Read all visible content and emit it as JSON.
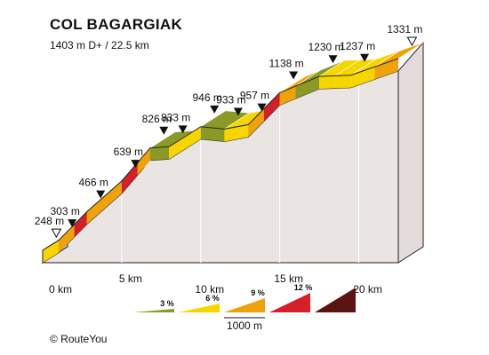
{
  "chart_data": {
    "type": "area",
    "title": "COL BAGARGIAK",
    "subtitle": "1403 m D+ / 22.5 km",
    "credit": "© RouteYou",
    "x_ticks": [
      "0 km",
      "5 km",
      "10 km",
      "15 km",
      "20 km"
    ],
    "points": [
      {
        "km": 0.0,
        "elev": 248,
        "label": "248 m",
        "marker": "start"
      },
      {
        "km": 1.0,
        "elev": 303,
        "label": "303 m",
        "marker": "peak"
      },
      {
        "km": 2.8,
        "elev": 466,
        "label": "466 m",
        "marker": "peak"
      },
      {
        "km": 5.0,
        "elev": 639,
        "label": "639 m",
        "marker": "peak"
      },
      {
        "km": 6.8,
        "elev": 826,
        "label": "826 m",
        "marker": "peak"
      },
      {
        "km": 8.0,
        "elev": 833,
        "label": "833 m",
        "marker": "peak"
      },
      {
        "km": 10.0,
        "elev": 946,
        "label": "946 m",
        "marker": "peak"
      },
      {
        "km": 11.5,
        "elev": 933,
        "label": "933 m",
        "marker": "peak"
      },
      {
        "km": 13.0,
        "elev": 957,
        "label": "957 m",
        "marker": "peak"
      },
      {
        "km": 15.0,
        "elev": 1138,
        "label": "1138 m",
        "marker": "peak"
      },
      {
        "km": 17.5,
        "elev": 1230,
        "label": "1230 m",
        "marker": "peak"
      },
      {
        "km": 19.5,
        "elev": 1237,
        "label": "1237 m",
        "marker": "peak"
      },
      {
        "km": 22.5,
        "elev": 1331,
        "label": "1331 m",
        "marker": "end"
      }
    ],
    "segments": [
      {
        "from": 0.0,
        "to": 1.0,
        "grade": 6
      },
      {
        "from": 1.0,
        "to": 2.0,
        "grade": 9
      },
      {
        "from": 2.0,
        "to": 2.8,
        "grade": 12
      },
      {
        "from": 2.8,
        "to": 4.0,
        "grade": 9
      },
      {
        "from": 4.0,
        "to": 5.0,
        "grade": 9
      },
      {
        "from": 5.0,
        "to": 6.0,
        "grade": 12
      },
      {
        "from": 6.0,
        "to": 6.8,
        "grade": 9
      },
      {
        "from": 6.8,
        "to": 8.0,
        "grade": 3
      },
      {
        "from": 8.0,
        "to": 9.0,
        "grade": 6
      },
      {
        "from": 9.0,
        "to": 10.0,
        "grade": 6
      },
      {
        "from": 10.0,
        "to": 11.5,
        "grade": 3
      },
      {
        "from": 11.5,
        "to": 13.0,
        "grade": 6
      },
      {
        "from": 13.0,
        "to": 14.0,
        "grade": 9
      },
      {
        "from": 14.0,
        "to": 15.0,
        "grade": 12
      },
      {
        "from": 15.0,
        "to": 16.0,
        "grade": 9
      },
      {
        "from": 16.0,
        "to": 17.5,
        "grade": 3
      },
      {
        "from": 17.5,
        "to": 18.5,
        "grade": 6
      },
      {
        "from": 18.5,
        "to": 19.5,
        "grade": 6
      },
      {
        "from": 19.5,
        "to": 21.0,
        "grade": 6
      },
      {
        "from": 21.0,
        "to": 22.5,
        "grade": 9
      }
    ],
    "legend": {
      "items": [
        {
          "label": "3 %",
          "grade": 3
        },
        {
          "label": "6 %",
          "grade": 6
        },
        {
          "label": "9 %",
          "grade": 9
        },
        {
          "label": "12 %",
          "grade": 12
        },
        {
          "label": "",
          "grade": 15
        }
      ],
      "scale_label": "1000 m"
    },
    "colors": {
      "grade_3": "#8a9a24",
      "grade_6": "#f7d600",
      "grade_9": "#f0a20a",
      "grade_12": "#d3202a",
      "grade_15": "#5a1414",
      "body": "#eae4e3",
      "base_side": "#bdb6b5",
      "outline": "#222222"
    },
    "x_range": [
      0,
      22.5
    ],
    "elev_range": [
      248,
      1331
    ]
  }
}
